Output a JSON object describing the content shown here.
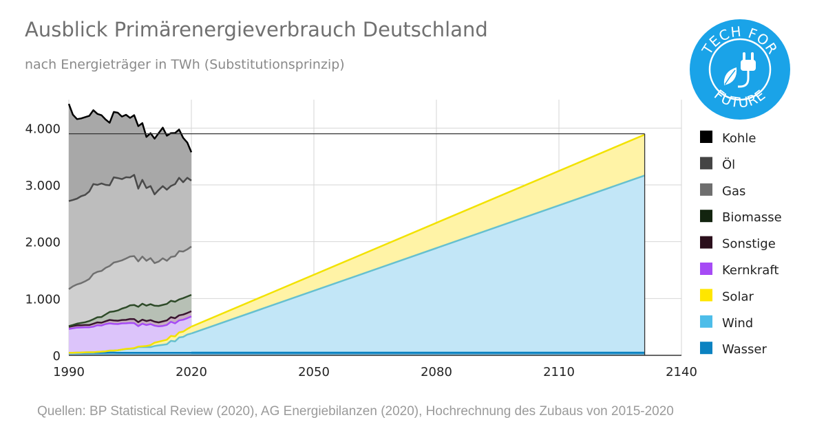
{
  "header": {
    "title": "Ausblick Primärenergieverbrauch Deutschland",
    "subtitle": "nach Energieträger in TWh (Substitutionsprinzip)"
  },
  "logo": {
    "text": "TECH FOR FUTURE",
    "color": "#1aa3e8",
    "icon": "plug-leaf-icon"
  },
  "source": "Quellen: BP Statistical Review (2020), AG Energiebilanzen (2020), Hochrechnung des Zubaus von 2015-2020",
  "chart_data": {
    "type": "area",
    "stacked": true,
    "x_axis": {
      "min": 1990,
      "max": 2140,
      "ticks": [
        "1990",
        "2020",
        "2050",
        "2080",
        "2110",
        "2140"
      ]
    },
    "y_axis": {
      "min": 0,
      "max": 4500,
      "ticks": [
        "0",
        "1.000",
        "2.000",
        "3.000",
        "4.000"
      ],
      "tick_values": [
        0,
        1000,
        2000,
        3000,
        4000
      ]
    },
    "grid": true,
    "legend_position": "right",
    "reference_line": {
      "y": 3900,
      "x_start": 1990,
      "x_end": 2131
    },
    "historical_years": [
      1990,
      1991,
      1992,
      1993,
      1994,
      1995,
      1996,
      1997,
      1998,
      1999,
      2000,
      2001,
      2002,
      2003,
      2004,
      2005,
      2006,
      2007,
      2008,
      2009,
      2010,
      2011,
      2012,
      2013,
      2014,
      2015,
      2016,
      2017,
      2018,
      2019,
      2020
    ],
    "projection_years": [
      2020,
      2131
    ],
    "series": [
      {
        "name": "Kohle",
        "color": "#000000",
        "fill": "#a8a8a8",
        "line": "#000000",
        "values": [
          1710,
          1500,
          1400,
          1370,
          1370,
          1330,
          1300,
          1250,
          1200,
          1150,
          1100,
          1150,
          1150,
          1100,
          1100,
          1050,
          1050,
          1100,
          1000,
          900,
          930,
          980,
          1000,
          1030,
          950,
          930,
          900,
          850,
          780,
          620,
          500
        ]
      },
      {
        "name": "Öl",
        "color": "#444444",
        "fill": "#bdbdbd",
        "line": "#4a4a4a",
        "values": [
          1550,
          1520,
          1510,
          1530,
          1520,
          1540,
          1580,
          1530,
          1540,
          1460,
          1420,
          1500,
          1470,
          1430,
          1430,
          1390,
          1430,
          1280,
          1350,
          1280,
          1270,
          1210,
          1260,
          1270,
          1250,
          1250,
          1270,
          1290,
          1220,
          1260,
          1160
        ]
      },
      {
        "name": "Gas",
        "color": "#6e6e6e",
        "fill": "#cfcfcf",
        "line": "#707070",
        "values": [
          650,
          680,
          690,
          700,
          720,
          740,
          800,
          800,
          810,
          820,
          810,
          860,
          860,
          850,
          860,
          860,
          860,
          800,
          830,
          790,
          810,
          750,
          780,
          820,
          760,
          770,
          800,
          850,
          820,
          830,
          850
        ]
      },
      {
        "name": "Biomasse",
        "color": "#13240f",
        "fill": "#b7c0b5",
        "line": "#2d4a28",
        "values": [
          15,
          20,
          30,
          40,
          50,
          70,
          80,
          90,
          100,
          120,
          140,
          160,
          180,
          200,
          220,
          240,
          250,
          270,
          280,
          270,
          280,
          280,
          290,
          290,
          290,
          290,
          290,
          280,
          290,
          290,
          290
        ]
      },
      {
        "name": "Sonstige",
        "color": "#2b0f1c",
        "fill": "#c7b0c0",
        "line": "#3a1630",
        "values": [
          35,
          40,
          40,
          40,
          40,
          40,
          50,
          50,
          50,
          50,
          60,
          60,
          60,
          60,
          60,
          70,
          70,
          70,
          70,
          70,
          70,
          70,
          70,
          80,
          80,
          80,
          90,
          90,
          90,
          90,
          90
        ]
      },
      {
        "name": "Kernkraft",
        "color": "#a64bf5",
        "fill": "#dcc4fa",
        "line": "#a64bf5",
        "values": [
          420,
          430,
          440,
          440,
          440,
          440,
          450,
          470,
          460,
          480,
          480,
          470,
          460,
          460,
          450,
          450,
          440,
          360,
          400,
          370,
          370,
          300,
          270,
          260,
          260,
          250,
          230,
          210,
          210,
          190,
          180
        ]
      },
      {
        "name": "Solar",
        "color": "#ffe600",
        "fill": "#fff3a6",
        "line": "#f2e200",
        "values": [
          0,
          0,
          0,
          0,
          0,
          0,
          0,
          0,
          0,
          0,
          0,
          0,
          0,
          2,
          4,
          5,
          7,
          9,
          13,
          19,
          35,
          58,
          65,
          73,
          80,
          86,
          88,
          89,
          92,
          100,
          120,
          720
        ]
      },
      {
        "name": "Wind",
        "color": "#4dbde9",
        "fill": "#c2e6f7",
        "line": "#66c0cf",
        "values": [
          0,
          0,
          3,
          5,
          8,
          9,
          10,
          15,
          20,
          25,
          35,
          35,
          45,
          55,
          65,
          70,
          75,
          100,
          100,
          100,
          100,
          120,
          130,
          140,
          150,
          210,
          200,
          270,
          280,
          320,
          340,
          3120
        ]
      },
      {
        "name": "Wasser",
        "color": "#0b82c1",
        "fill": "#7fbedf",
        "line": "#0b82c1",
        "values": [
          45,
          45,
          45,
          45,
          45,
          45,
          45,
          45,
          45,
          45,
          48,
          48,
          45,
          45,
          45,
          45,
          45,
          45,
          45,
          45,
          45,
          45,
          45,
          45,
          45,
          45,
          45,
          45,
          45,
          45,
          45,
          45
        ]
      }
    ]
  }
}
